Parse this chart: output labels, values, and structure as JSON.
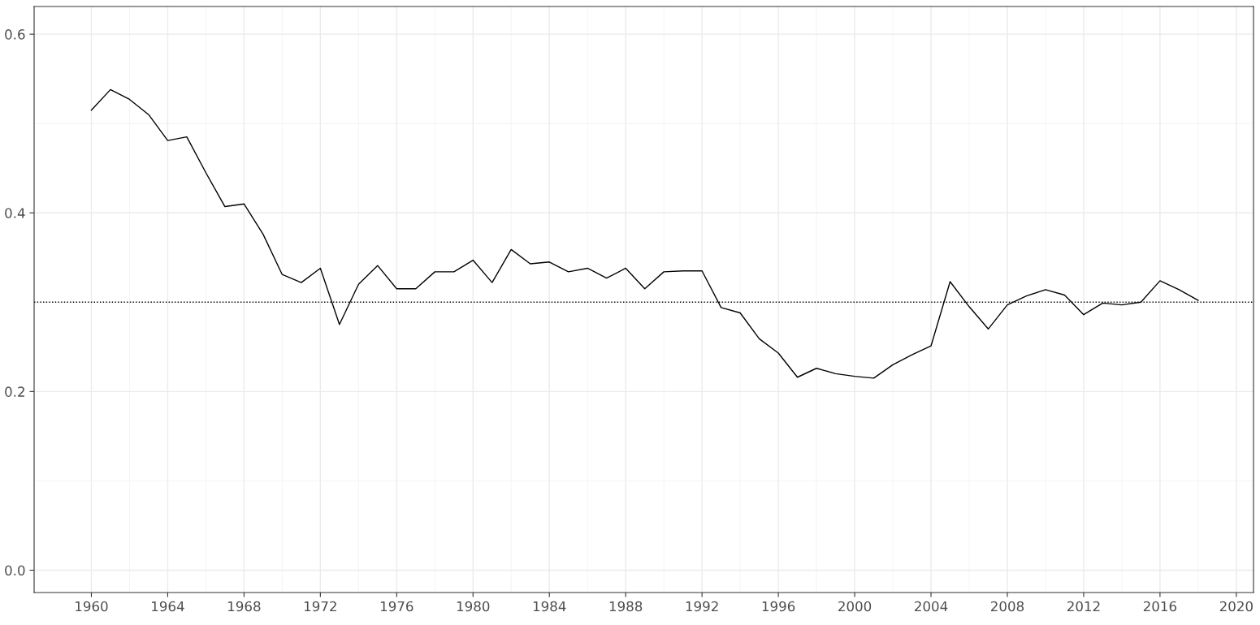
{
  "chart_data": {
    "type": "line",
    "x": [
      1960,
      1961,
      1962,
      1963,
      1964,
      1965,
      1966,
      1967,
      1968,
      1969,
      1970,
      1971,
      1972,
      1973,
      1974,
      1975,
      1976,
      1977,
      1978,
      1979,
      1980,
      1981,
      1982,
      1983,
      1984,
      1985,
      1986,
      1987,
      1988,
      1989,
      1990,
      1991,
      1992,
      1993,
      1994,
      1995,
      1996,
      1997,
      1998,
      1999,
      2000,
      2001,
      2002,
      2003,
      2004,
      2005,
      2006,
      2007,
      2008,
      2009,
      2010,
      2011,
      2012,
      2013,
      2014,
      2015,
      2016,
      2017,
      2018
    ],
    "series": [
      {
        "color": "#000000",
        "values": [
          0.515,
          0.538,
          0.527,
          0.51,
          0.481,
          0.485,
          0.445,
          0.407,
          0.41,
          0.376,
          0.331,
          0.322,
          0.338,
          0.275,
          0.32,
          0.341,
          0.315,
          0.315,
          0.334,
          0.334,
          0.347,
          0.322,
          0.359,
          0.343,
          0.345,
          0.334,
          0.338,
          0.327,
          0.338,
          0.315,
          0.334,
          0.335,
          0.335,
          0.294,
          0.288,
          0.259,
          0.243,
          0.216,
          0.226,
          0.22,
          0.217,
          0.215,
          0.23,
          0.241,
          0.251,
          0.323,
          0.295,
          0.27,
          0.297,
          0.307,
          0.314,
          0.308,
          0.286,
          0.299,
          0.297,
          0.3,
          0.324,
          0.314,
          0.302
        ]
      }
    ],
    "xlim": [
      1957,
      2020.9
    ],
    "xticks": [
      1960,
      1964,
      1968,
      1972,
      1976,
      1980,
      1984,
      1988,
      1992,
      1996,
      2000,
      2004,
      2008,
      2012,
      2016,
      2020
    ],
    "ylim": [
      -0.025,
      0.631
    ],
    "yticks": [
      {
        "value": 0,
        "label": "0.0"
      },
      0.2,
      0.4,
      0.6
    ],
    "ref_lines": [
      {
        "axis": "y",
        "value": 0.3,
        "line_style": "dotted",
        "color": "#000000"
      }
    ],
    "grid": true,
    "line_style": "solid",
    "marker": "none"
  }
}
